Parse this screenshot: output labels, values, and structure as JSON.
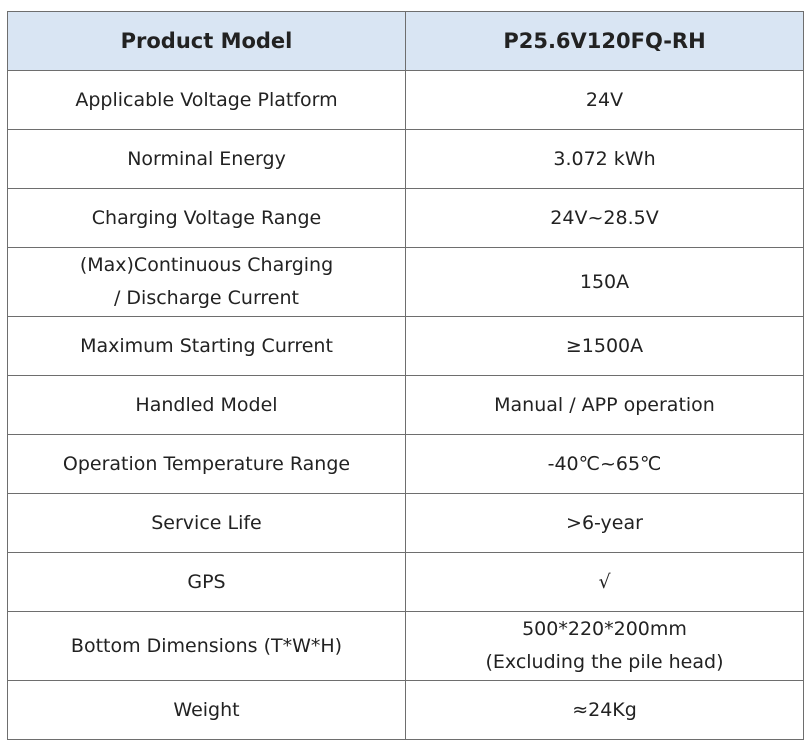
{
  "table": {
    "header": {
      "label": "Product Model",
      "value": "P25.6V120FQ-RH"
    },
    "rows": [
      {
        "label": "Applicable Voltage Platform",
        "value": "24V"
      },
      {
        "label": "Norminal Energy",
        "value": "3.072 kWh"
      },
      {
        "label": "Charging Voltage Range",
        "value": "24V~28.5V"
      },
      {
        "label_line1": "(Max)Continuous Charging",
        "label_line2": "/ Discharge Current",
        "value": "150A"
      },
      {
        "label": "Maximum Starting Current",
        "value": "≥1500A"
      },
      {
        "label": "Handled Model",
        "value": "Manual / APP operation"
      },
      {
        "label": "Operation Temperature Range",
        "value": "-40℃~65℃"
      },
      {
        "label": "Service Life",
        "value": ">6-year"
      },
      {
        "label": "GPS",
        "value": "√"
      },
      {
        "label": "Bottom Dimensions (T*W*H)",
        "value_line1": "500*220*200mm",
        "value_line2": "(Excluding the pile head)"
      },
      {
        "label": "Weight",
        "value": "≈24Kg"
      }
    ]
  }
}
